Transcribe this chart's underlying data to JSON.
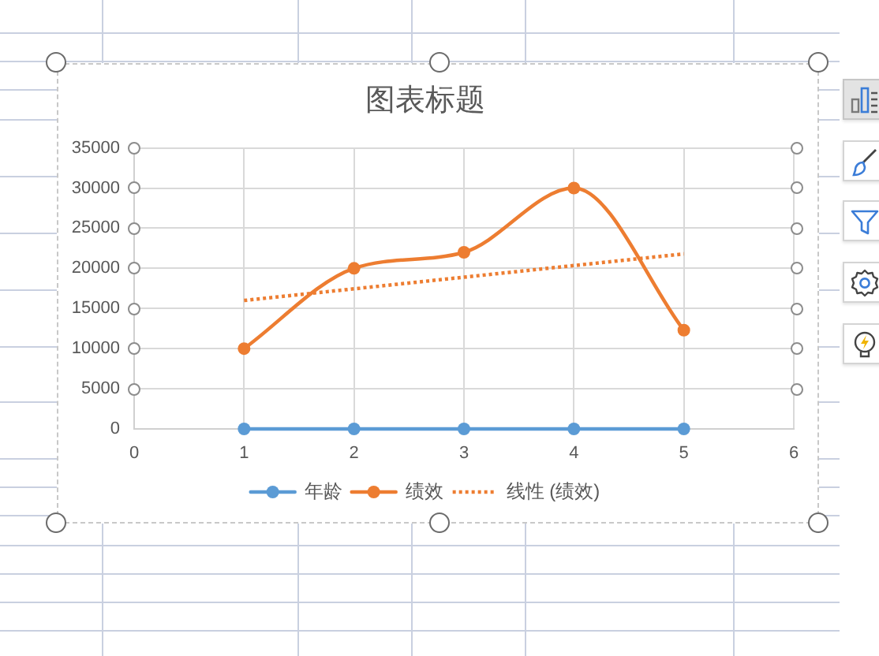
{
  "chart_data": {
    "type": "line",
    "title": "图表标题",
    "x": [
      1,
      2,
      3,
      4,
      5
    ],
    "xlim": [
      0,
      6
    ],
    "xticks": [
      0,
      1,
      2,
      3,
      4,
      5,
      6
    ],
    "ylim": [
      0,
      35000
    ],
    "yticks": [
      0,
      5000,
      10000,
      15000,
      20000,
      25000,
      30000,
      35000
    ],
    "grid": true,
    "legend": "bottom",
    "marker": "circle",
    "series": [
      {
        "name": "年龄",
        "color": "#5b9bd5",
        "values": [
          0,
          0,
          0,
          0,
          0
        ]
      },
      {
        "name": "绩效",
        "color": "#ed7d31",
        "values": [
          10000,
          20000,
          22000,
          30000,
          12300
        ]
      },
      {
        "name": "线性 (绩效)",
        "type": "line",
        "color": "#ed7d31",
        "x": [
          1,
          5
        ],
        "values": [
          16000,
          21800
        ],
        "line_style": "dotted",
        "marker": "none"
      }
    ]
  }
}
